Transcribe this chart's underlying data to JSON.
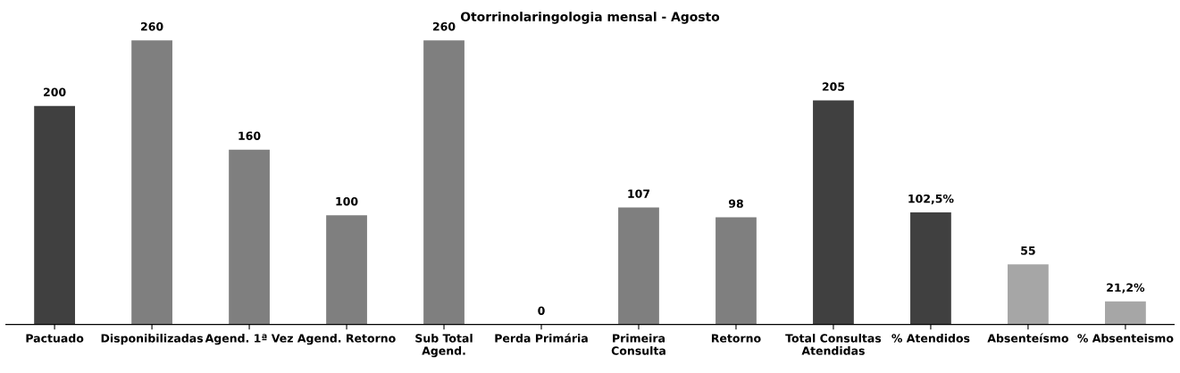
{
  "chart_data": {
    "type": "bar",
    "title": "Otorrinolaringologia mensal - Agosto",
    "categories": [
      "Pactuado",
      "Disponibilizadas",
      "Agend. 1ª Vez",
      "Agend. Retorno",
      "Sub Total\nAgend.",
      "Perda Primária",
      "Primeira\nConsulta",
      "Retorno",
      "Total Consultas\nAtendidas",
      "% Atendidos",
      "Absenteísmo",
      "% Absenteismo"
    ],
    "values": [
      200,
      260,
      160,
      100,
      260,
      0,
      107,
      98,
      205,
      102.5,
      55,
      21.2
    ],
    "value_labels": [
      "200",
      "260",
      "160",
      "100",
      "260",
      "0",
      "107",
      "98",
      "205",
      "102,5%",
      "55",
      "21,2%"
    ],
    "colors": [
      "#404040",
      "#7f7f7f",
      "#7f7f7f",
      "#7f7f7f",
      "#7f7f7f",
      "#7f7f7f",
      "#7f7f7f",
      "#7f7f7f",
      "#404040",
      "#404040",
      "#a6a6a6",
      "#a6a6a6"
    ],
    "grid": false,
    "legend": false
  }
}
